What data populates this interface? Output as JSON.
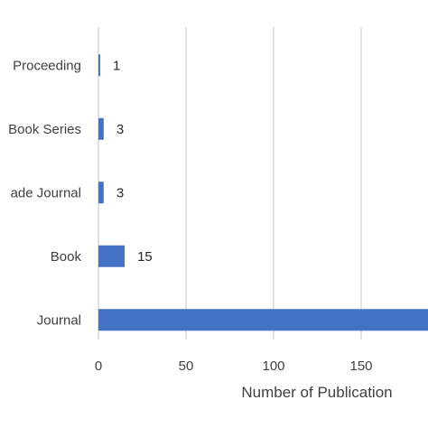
{
  "chart_data": {
    "type": "bar",
    "orientation": "horizontal",
    "categories": [
      "Proceeding",
      "Book Series",
      "Trade Journal",
      "Book",
      "Journal"
    ],
    "visible_category_labels": [
      "Proceeding",
      "Book Series",
      "ade Journal",
      "Book",
      "Journal"
    ],
    "values": [
      1,
      3,
      3,
      15,
      190
    ],
    "value_labels": [
      "1",
      "3",
      "3",
      "15",
      ""
    ],
    "xlabel": "Number of Publication",
    "ylabel": "",
    "title": "",
    "xlim": [
      0,
      200
    ],
    "x_ticks": [
      0,
      50,
      100,
      150
    ],
    "grid": "vertical",
    "legend": "none",
    "bar_color": "#4472c4",
    "grid_color": "#d9d9d9"
  }
}
